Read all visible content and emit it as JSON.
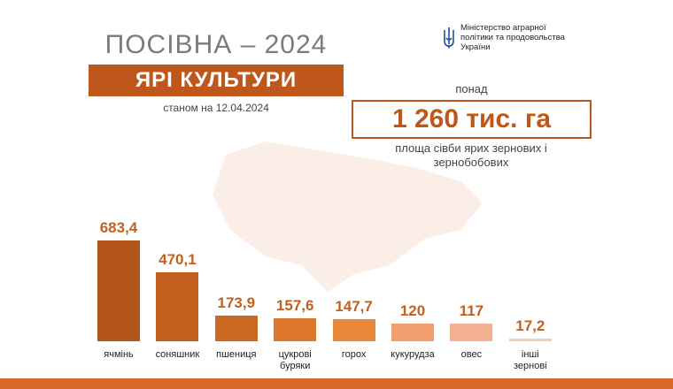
{
  "header": {
    "title": "ПОСІВНА – 2024",
    "banner": "ЯРІ КУЛЬТУРИ",
    "date": "станом на 12.04.2024",
    "ministry": "Міністерство аграрної політики та продовольства України"
  },
  "summary": {
    "prefix": "понад",
    "value": "1 260 тис. га",
    "note": "площа сівби ярих зернових і зернобобових"
  },
  "chart_data": {
    "type": "bar",
    "categories": [
      "ячмінь",
      "соняшник",
      "пшениця",
      "цукрові буряки",
      "горох",
      "кукурудза",
      "овес",
      "інші зернові"
    ],
    "values": [
      683.4,
      470.1,
      173.9,
      157.6,
      147.7,
      120,
      117,
      17.2
    ],
    "value_labels": [
      "683,4",
      "470,1",
      "173,9",
      "157,6",
      "147,7",
      "120",
      "117",
      "17,2"
    ],
    "colors": [
      "#b2541b",
      "#c25f1f",
      "#cd6823",
      "#dd772b",
      "#ea883a",
      "#f29f70",
      "#f3b091",
      "#f6cdb9"
    ]
  }
}
